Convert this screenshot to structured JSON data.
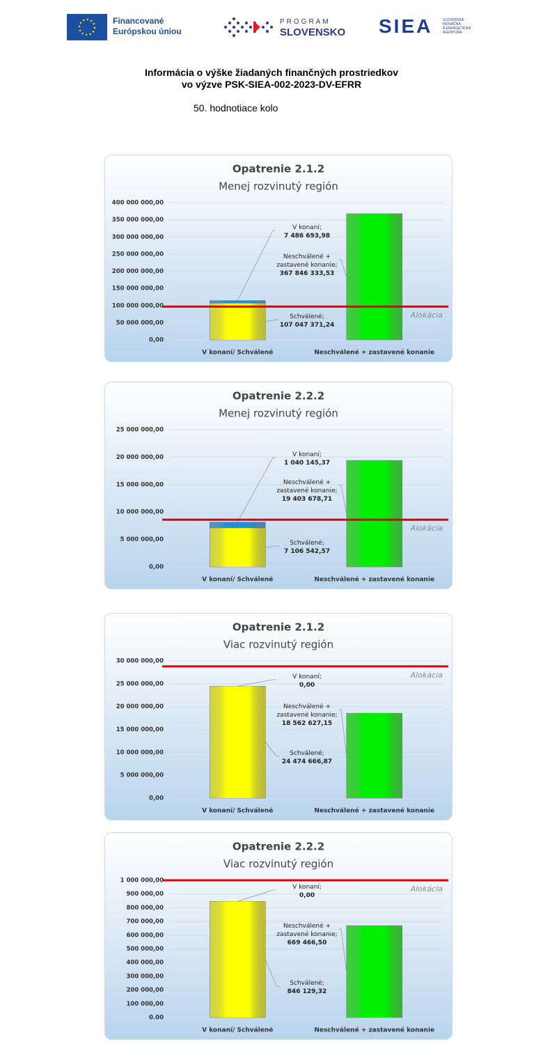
{
  "header": {
    "eu": [
      "Financované",
      "Európskou úniou"
    ],
    "program": [
      "PROGRAM",
      "SLOVENSKO"
    ],
    "siea": "SIEA",
    "siea_sub": [
      "SLOVENSKÁ",
      "INOVAČNÁ",
      "A ENERGETICKÁ",
      "AGENTÚRA"
    ]
  },
  "title": [
    "Informácia o výške žiadaných finančných prostriedkov",
    "vo výzve PSK-SIEA-002-2023-DV-EFRR"
  ],
  "round": "50. hodnotiace kolo",
  "chart_data": [
    {
      "type": "bar",
      "stacked": true,
      "title": "Opatrenie 2.1.2",
      "subtitle": "Menej rozvinutý región",
      "categories": [
        "V konaní/ Schválené",
        "Neschválené + zastavené konanie"
      ],
      "series": [
        {
          "name": "Schválené;",
          "color": "#ffff00",
          "values": [
            107047371.24,
            null
          ],
          "value_labels": [
            "107 047 371,24",
            null
          ]
        },
        {
          "name": "V konaní;",
          "color": "#1e8fd8",
          "values": [
            7486693.98,
            null
          ],
          "value_labels": [
            "7 486 693,98",
            null
          ]
        },
        {
          "name": "Neschválené + zastavené konanie;",
          "color": "#00ee00",
          "values": [
            null,
            367846333.53
          ],
          "value_labels": [
            null,
            "367 846 333,53"
          ]
        }
      ],
      "allocation": {
        "label": "Alokácia",
        "value": 97000000,
        "color": "#e00000"
      },
      "ylim": [
        0,
        400000000
      ],
      "yticks": [
        {
          "value": 0,
          "label": "0,00"
        },
        {
          "value": 50000000,
          "label": "50 000 000,00"
        },
        {
          "value": 100000000,
          "label": "100 000 000,00"
        },
        {
          "value": 150000000,
          "label": "150 000 000,00"
        },
        {
          "value": 200000000,
          "label": "200 000 000,00"
        },
        {
          "value": 250000000,
          "label": "250 000 000,00"
        },
        {
          "value": 300000000,
          "label": "300 000 000,00"
        },
        {
          "value": 350000000,
          "label": "350 000 000,00"
        },
        {
          "value": 400000000,
          "label": "400 000 000,00"
        }
      ],
      "grid": true
    },
    {
      "type": "bar",
      "stacked": true,
      "title": "Opatrenie 2.2.2",
      "subtitle": "Menej rozvinutý región",
      "categories": [
        "V konaní/ Schválené",
        "Neschválené + zastavené konanie"
      ],
      "series": [
        {
          "name": "Schválené;",
          "color": "#ffff00",
          "values": [
            7106542.57,
            null
          ],
          "value_labels": [
            "7 106 542,57",
            null
          ]
        },
        {
          "name": "V konaní;",
          "color": "#1e8fd8",
          "values": [
            1040145.37,
            null
          ],
          "value_labels": [
            "1 040 145,37",
            null
          ]
        },
        {
          "name": "Neschválené + zastavené konanie;",
          "color": "#00ee00",
          "values": [
            null,
            19403678.71
          ],
          "value_labels": [
            null,
            "19 403 678,71"
          ]
        }
      ],
      "allocation": {
        "label": "Alokácia",
        "value": 8600000,
        "color": "#e00000"
      },
      "ylim": [
        0,
        25000000
      ],
      "yticks": [
        {
          "value": 0,
          "label": "0,00"
        },
        {
          "value": 5000000,
          "label": "5 000 000,00"
        },
        {
          "value": 10000000,
          "label": "10 000 000,00"
        },
        {
          "value": 15000000,
          "label": "15 000 000,00"
        },
        {
          "value": 20000000,
          "label": "20 000 000,00"
        },
        {
          "value": 25000000,
          "label": "25 000 000,00"
        }
      ],
      "grid": true
    },
    {
      "type": "bar",
      "stacked": true,
      "title": "Opatrenie 2.1.2",
      "subtitle": "Viac rozvinutý región",
      "categories": [
        "V konaní/ Schválené",
        "Neschválené + zastavené konanie"
      ],
      "series": [
        {
          "name": "Schválené;",
          "color": "#ffff00",
          "values": [
            24474666.87,
            null
          ],
          "value_labels": [
            "24 474 666,87",
            null
          ]
        },
        {
          "name": "V konaní;",
          "color": "#1e8fd8",
          "values": [
            0,
            null
          ],
          "value_labels": [
            "0,00",
            null
          ]
        },
        {
          "name": "Neschválené + zastavené konanie;",
          "color": "#00ee00",
          "values": [
            null,
            18562627.15
          ],
          "value_labels": [
            null,
            "18 562 627,15"
          ]
        }
      ],
      "allocation": {
        "label": "Alokácia",
        "value": 28800000,
        "color": "#e00000"
      },
      "ylim": [
        0,
        30000000
      ],
      "yticks": [
        {
          "value": 0,
          "label": "0,00"
        },
        {
          "value": 5000000,
          "label": "5 000 000,00"
        },
        {
          "value": 10000000,
          "label": "10 000 000,00"
        },
        {
          "value": 15000000,
          "label": "15 000 000,00"
        },
        {
          "value": 20000000,
          "label": "20 000 000,00"
        },
        {
          "value": 25000000,
          "label": "25 000 000,00"
        },
        {
          "value": 30000000,
          "label": "30 000 000,00"
        }
      ],
      "grid": true
    },
    {
      "type": "bar",
      "stacked": true,
      "title": "Opatrenie 2.2.2",
      "subtitle": "Viac rozvinutý región",
      "categories": [
        "V konaní/ Schválené",
        "Neschválené + zastavené konanie"
      ],
      "series": [
        {
          "name": "Schválené;",
          "color": "#ffff00",
          "values": [
            846129.32,
            null
          ],
          "value_labels": [
            "846 129,32",
            null
          ]
        },
        {
          "name": "V konaní;",
          "color": "#1e8fd8",
          "values": [
            0,
            null
          ],
          "value_labels": [
            "0,00",
            null
          ]
        },
        {
          "name": "Neschválené + zastavené konanie;",
          "color": "#00ee00",
          "values": [
            null,
            669466.5
          ],
          "value_labels": [
            null,
            "669 466,50"
          ]
        }
      ],
      "allocation": {
        "label": "Alokácia",
        "value": 1000000,
        "color": "#e00000"
      },
      "ylim": [
        0,
        1000000
      ],
      "yticks": [
        {
          "value": 0,
          "label": "0.00"
        },
        {
          "value": 100000,
          "label": "100 000,00"
        },
        {
          "value": 200000,
          "label": "200 000,00"
        },
        {
          "value": 300000,
          "label": "300 000,00"
        },
        {
          "value": 400000,
          "label": "400 000,00"
        },
        {
          "value": 500000,
          "label": "500 000,00"
        },
        {
          "value": 600000,
          "label": "600 000,00"
        },
        {
          "value": 700000,
          "label": "700 000,00"
        },
        {
          "value": 800000,
          "label": "800 000,00"
        },
        {
          "value": 900000,
          "label": "900 000,00"
        },
        {
          "value": 1000000,
          "label": "1 000 000,00"
        }
      ],
      "grid": true
    }
  ]
}
